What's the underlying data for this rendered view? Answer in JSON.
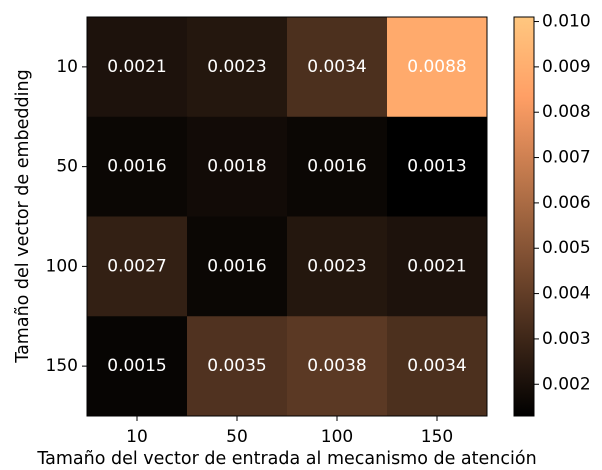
{
  "chart_data": {
    "type": "heatmap",
    "title": "",
    "xlabel": "Tamaño del vector de entrada al mecanismo de atención",
    "ylabel": "Tamaño del vector de embedding",
    "x_categories": [
      "10",
      "50",
      "100",
      "150"
    ],
    "y_categories": [
      "10",
      "50",
      "100",
      "150"
    ],
    "values": [
      [
        0.0021,
        0.0023,
        0.0034,
        0.0088
      ],
      [
        0.0016,
        0.0018,
        0.0016,
        0.0013
      ],
      [
        0.0027,
        0.0016,
        0.0023,
        0.0021
      ],
      [
        0.0015,
        0.0035,
        0.0038,
        0.0034
      ]
    ],
    "value_labels": [
      [
        "0.0021",
        "0.0023",
        "0.0034",
        "0.0088"
      ],
      [
        "0.0016",
        "0.0018",
        "0.0016",
        "0.0013"
      ],
      [
        "0.0027",
        "0.0016",
        "0.0023",
        "0.0021"
      ],
      [
        "0.0015",
        "0.0035",
        "0.0038",
        "0.0034"
      ]
    ],
    "colormap": "copper",
    "colorbar": {
      "range": [
        0.0013,
        0.0101
      ],
      "ticks": [
        0.002,
        0.003,
        0.004,
        0.005,
        0.006,
        0.007,
        0.008,
        0.009,
        0.01
      ],
      "tick_labels": [
        "0.002",
        "0.003",
        "0.004",
        "0.005",
        "0.006",
        "0.007",
        "0.008",
        "0.009",
        "0.010"
      ]
    },
    "grid": false
  }
}
